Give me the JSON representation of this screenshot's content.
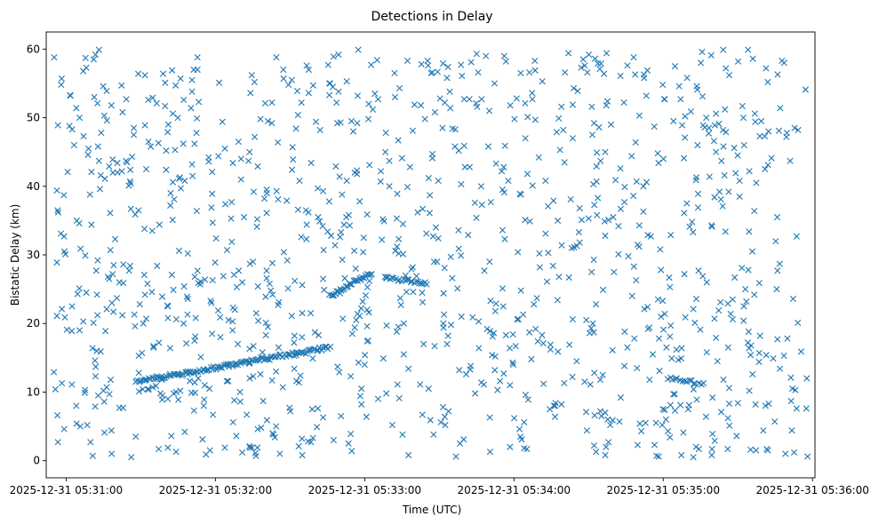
{
  "chart_data": {
    "type": "scatter",
    "title": "Detections in Delay",
    "xlabel": "Time (UTC)",
    "ylabel": "Bistatic Delay (km)",
    "marker": "x",
    "color": "#1f77b4",
    "x_unit": "seconds after 2025-12-31 05:30:00",
    "xlim": [
      52,
      361
    ],
    "ylim": [
      -2.5,
      62.5
    ],
    "xticks": [
      {
        "value": 60,
        "label": "2025-12-31 05:31:00"
      },
      {
        "value": 120,
        "label": "2025-12-31 05:32:00"
      },
      {
        "value": 180,
        "label": "2025-12-31 05:33:00"
      },
      {
        "value": 240,
        "label": "2025-12-31 05:34:00"
      },
      {
        "value": 300,
        "label": "2025-12-31 05:35:00"
      },
      {
        "value": 360,
        "label": "2025-12-31 05:36:00"
      }
    ],
    "yticks": [
      {
        "value": 0,
        "label": "0"
      },
      {
        "value": 10,
        "label": "10"
      },
      {
        "value": 20,
        "label": "20"
      },
      {
        "value": 30,
        "label": "30"
      },
      {
        "value": 40,
        "label": "40"
      },
      {
        "value": 50,
        "label": "50"
      },
      {
        "value": 60,
        "label": "60"
      }
    ],
    "clutter": {
      "x_range": [
        55,
        358
      ],
      "y_range": [
        0.5,
        60
      ],
      "count": 1150
    },
    "tracks": [
      {
        "x_start": 88,
        "x_end": 166,
        "y_start": 11.5,
        "y_end": 16.5,
        "count": 120
      },
      {
        "x_start": 166,
        "x_end": 182,
        "y_start": 24,
        "y_end": 27.3,
        "count": 28
      },
      {
        "x_start": 175,
        "x_end": 183,
        "y_start": 18.5,
        "y_end": 27,
        "count": 10
      },
      {
        "x_start": 188,
        "x_end": 205,
        "y_start": 26.6,
        "y_end": 25.9,
        "count": 24
      },
      {
        "x_start": 302,
        "x_end": 316,
        "y_start": 12,
        "y_end": 11.2,
        "count": 16
      }
    ],
    "points": []
  }
}
